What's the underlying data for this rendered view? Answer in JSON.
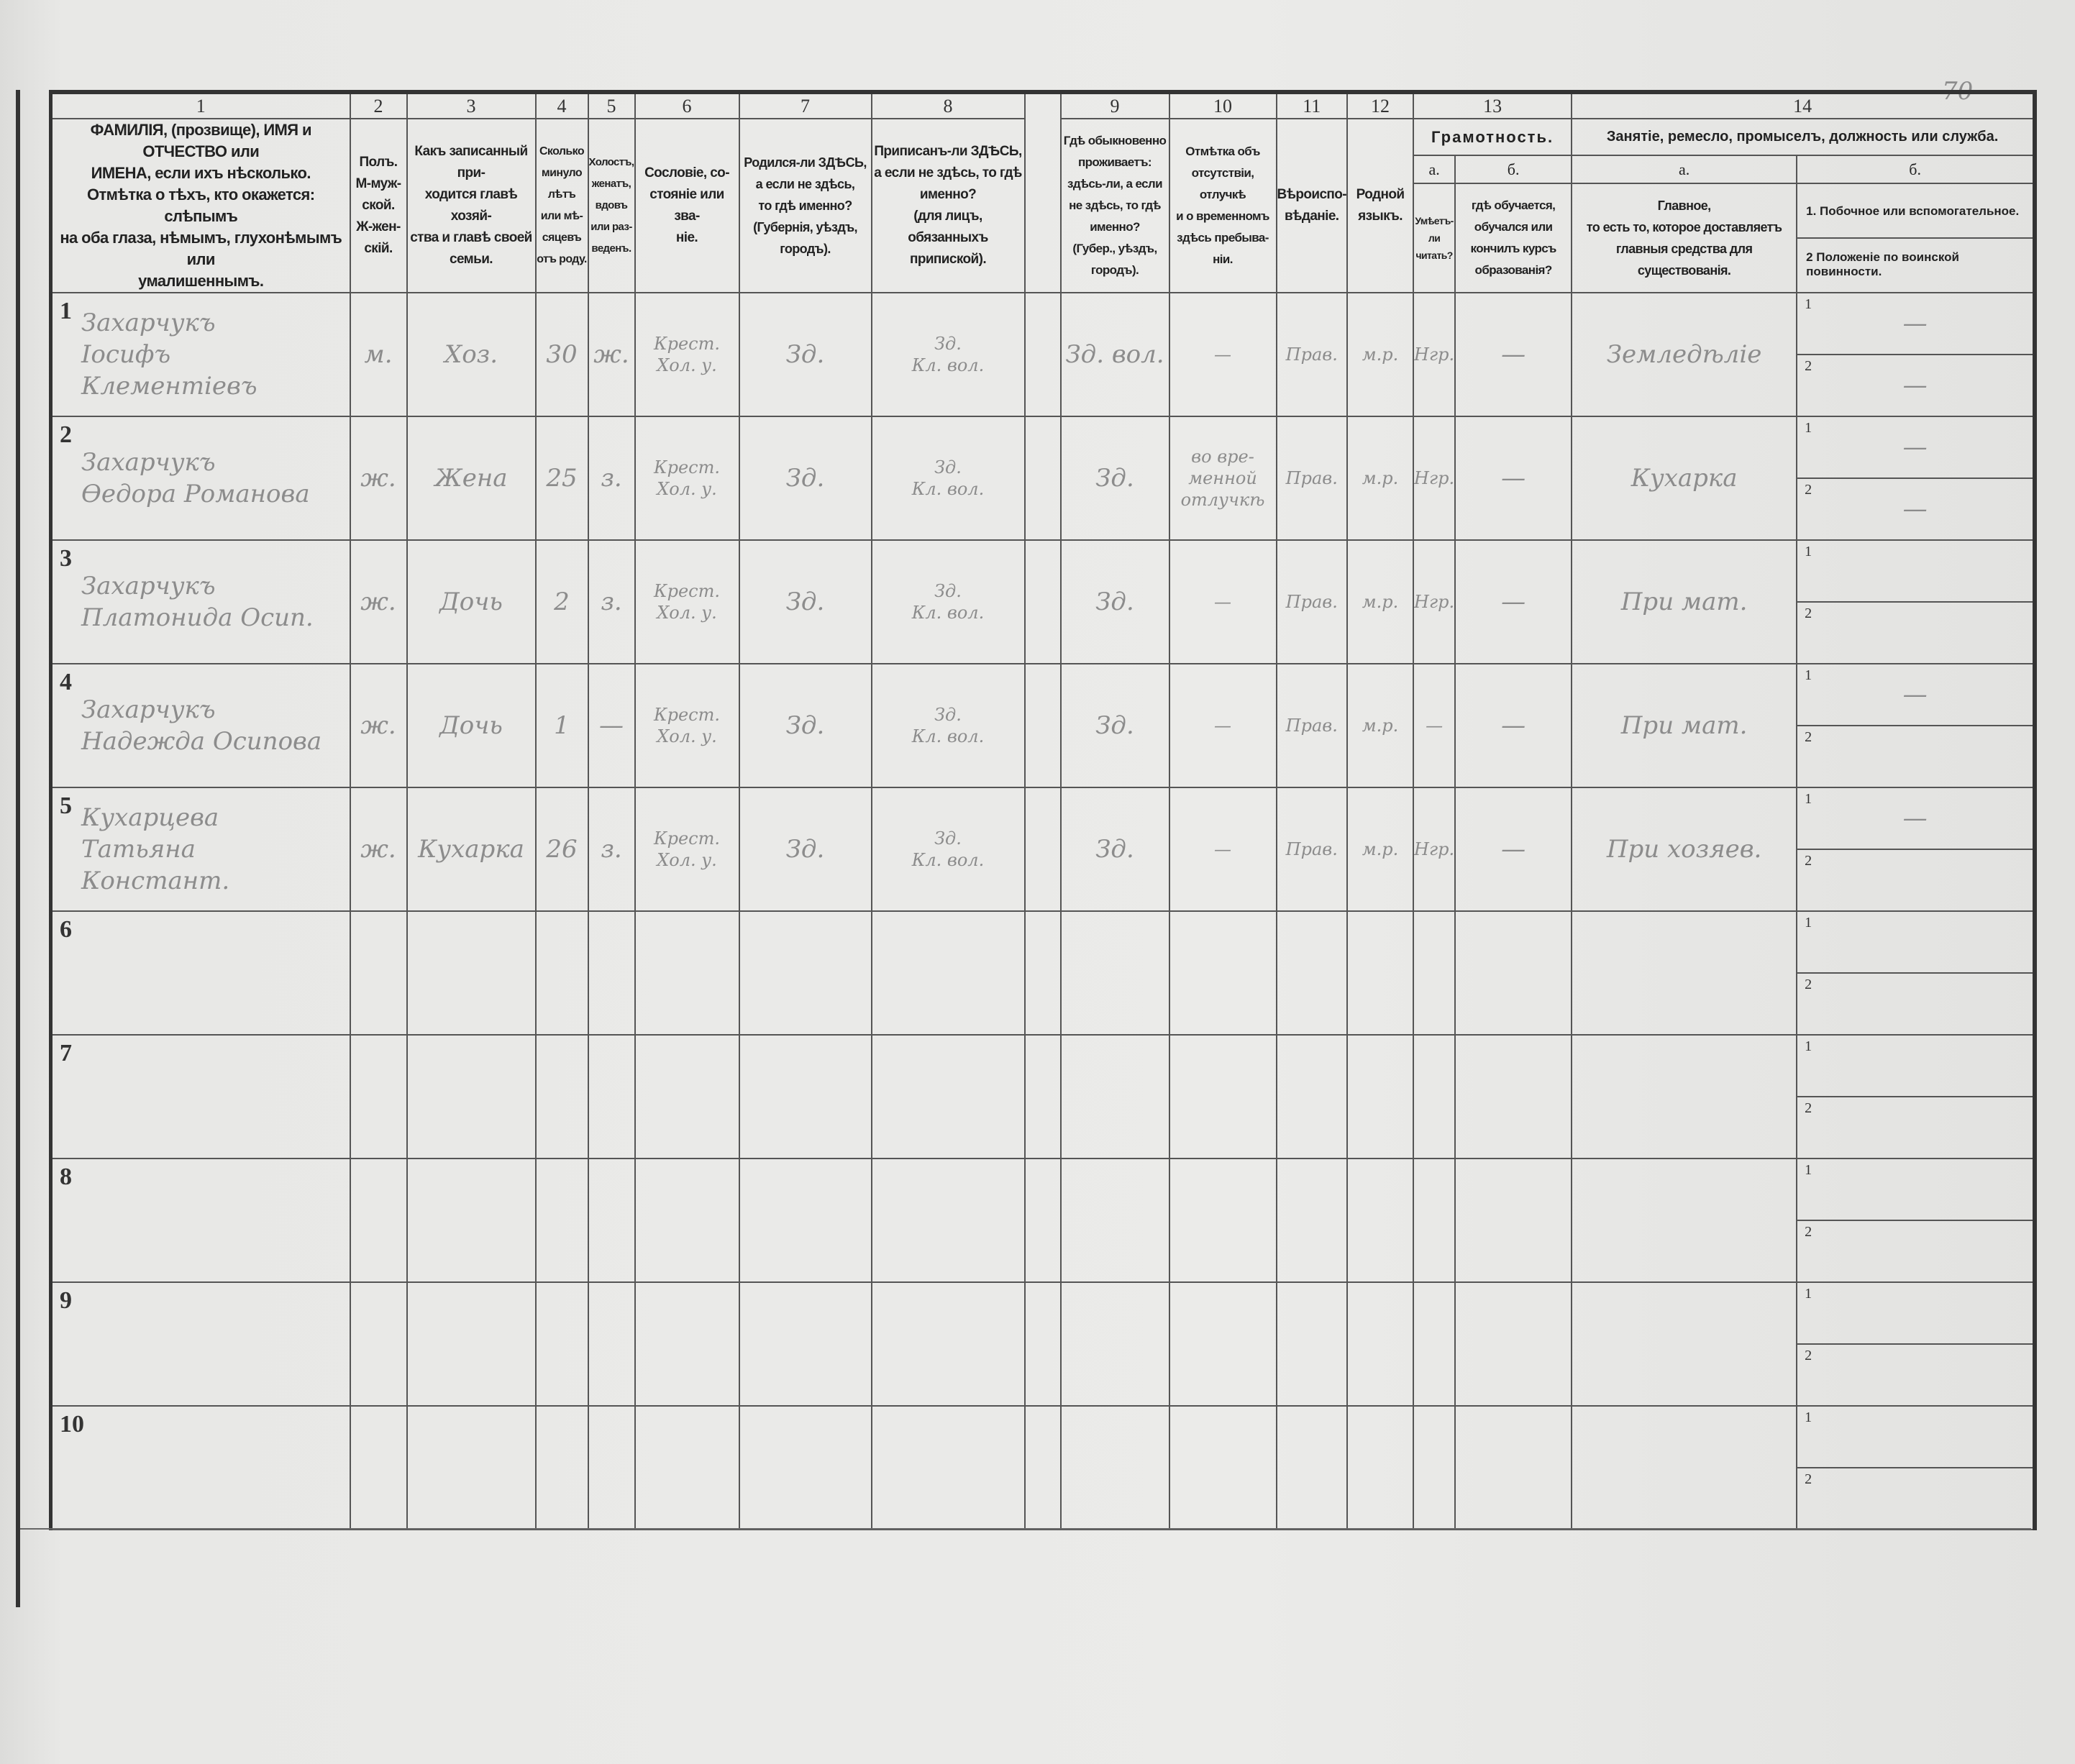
{
  "page_number": "70",
  "header": {
    "numbers": [
      "1",
      "2",
      "3",
      "4",
      "5",
      "6",
      "7",
      "8",
      "9",
      "10",
      "11",
      "12",
      "13",
      "14"
    ],
    "col1": "ФАМИЛІЯ, (прозвище), ИМЯ и ОТЧЕСТВО или\nИМЕНА, если ихъ нѣсколько.\nОтмѣтка о тѣхъ, кто окажется: слѣпымъ\nна оба глаза, нѣмымъ, глухонѣмымъ или\nумалишеннымъ.",
    "col2": "Полъ.\nМ-муж-\nской.\nЖ-жен-\nскій.",
    "col3": "Какъ записанный при-\nходится главѣ хозяй-\nства и главѣ своей\nсемьи.",
    "col4": "Сколько\nминуло\nлѣтъ\nили мѣ-\nсяцевъ\nотъ роду.",
    "col5": "Холостъ,\nженатъ,\nвдовъ\nили раз-\nведенъ.",
    "col6": "Сословіе, со-\nстояніе или зва-\nніе.",
    "col7": "Родился-ли ЗДѢСЬ,\nа если не здѣсь,\nто гдѣ именно?\n(Губернія, уѣздъ, городъ).",
    "col8": "Приписанъ-ли ЗДѢСЬ,\nа если не здѣсь, то гдѣ\nименно?\n(для лицъ, обязанныхъ\nприпиской).",
    "col9": "Гдѣ обыкновенно\nпроживаетъ:\nздѣсь-ли, а если\nне здѣсь, то гдѣ\nименно?\n(Губер., уѣздъ, городъ).",
    "col10": "Отмѣтка объ\nотсутствіи, отлучкѣ\nи о временномъ\nздѣсь пребыва-\nніи.",
    "col11": "Вѣроиспо-\nвѣданіе.",
    "col12": "Родной\nязыкъ.",
    "col13_title": "Грамотность.",
    "col13a_label": "а.",
    "col13b_label": "б.",
    "col13a": "Умѣетъ-\nли\nчитать?",
    "col13b": "гдѣ обучается,\nобучался или\nкончилъ курсъ\nобразованія?",
    "col14_title": "Занятіе, ремесло, промыселъ, должность или служба.",
    "col14a_label": "а.",
    "col14b_label": "б.",
    "col14a": "Главное,\nто есть то, которое доставляетъ\nглавныя средства для существованія.",
    "col14b_1": "1. Побочное или вспомогательное.",
    "col14b_2": "2  Положеніе по воинской повинности."
  },
  "sub_labels": [
    "1",
    "2"
  ],
  "rows": [
    {
      "no": "1",
      "name": "Захарчукъ\nІосифъ Клементіевъ",
      "sex": "м.",
      "relation": "Хоз.",
      "age": "30",
      "marital": "ж.",
      "estate": "Крест.\nХол. у.",
      "birthplace": "Зд.",
      "registered": "Зд.\nКл. вол.",
      "residence": "Зд. вол.",
      "absence": "—",
      "religion": "Прав.",
      "language": "м.р.",
      "literate": "Нгр.",
      "education": "—",
      "occupation": "Земледѣліе",
      "secondary": "—",
      "military": "—"
    },
    {
      "no": "2",
      "name": "Захарчукъ\nӨедора Романова",
      "sex": "ж.",
      "relation": "Жена",
      "age": "25",
      "marital": "з.",
      "estate": "Крест.\nХол. у.",
      "birthplace": "Зд.",
      "registered": "Зд.\nКл. вол.",
      "residence": "Зд.",
      "absence": "во вре-\nменной\nотлучкѣ",
      "religion": "Прав.",
      "language": "м.р.",
      "literate": "Нгр.",
      "education": "—",
      "occupation": "Кухарка",
      "secondary": "—",
      "military": "—"
    },
    {
      "no": "3",
      "name": "Захарчукъ\nПлатонида Осип.",
      "sex": "ж.",
      "relation": "Дочь",
      "age": "2",
      "marital": "з.",
      "estate": "Крест.\nХол. у.",
      "birthplace": "Зд.",
      "registered": "Зд.\nКл. вол.",
      "residence": "Зд.",
      "absence": "—",
      "religion": "Прав.",
      "language": "м.р.",
      "literate": "Нгр.",
      "education": "—",
      "occupation": "При мат.",
      "secondary": "",
      "military": ""
    },
    {
      "no": "4",
      "name": "Захарчукъ\nНадежда Осипова",
      "sex": "ж.",
      "relation": "Дочь",
      "age": "1",
      "marital": "—",
      "estate": "Крест.\nХол. у.",
      "birthplace": "Зд.",
      "registered": "Зд.\nКл. вол.",
      "residence": "Зд.",
      "absence": "—",
      "religion": "Прав.",
      "language": "м.р.",
      "literate": "—",
      "education": "—",
      "occupation": "При мат.",
      "secondary": "—",
      "military": ""
    },
    {
      "no": "5",
      "name": "Кухарцева\nТатьяна Констант.",
      "sex": "ж.",
      "relation": "Кухарка",
      "age": "26",
      "marital": "з.",
      "estate": "Крест.\nХол. у.",
      "birthplace": "Зд.",
      "registered": "Зд.\nКл. вол.",
      "residence": "Зд.",
      "absence": "—",
      "religion": "Прав.",
      "language": "м.р.",
      "literate": "Нгр.",
      "education": "—",
      "occupation": "При хозяев.",
      "secondary": "—",
      "military": ""
    },
    {
      "no": "6"
    },
    {
      "no": "7"
    },
    {
      "no": "8"
    },
    {
      "no": "9"
    },
    {
      "no": "10"
    }
  ]
}
